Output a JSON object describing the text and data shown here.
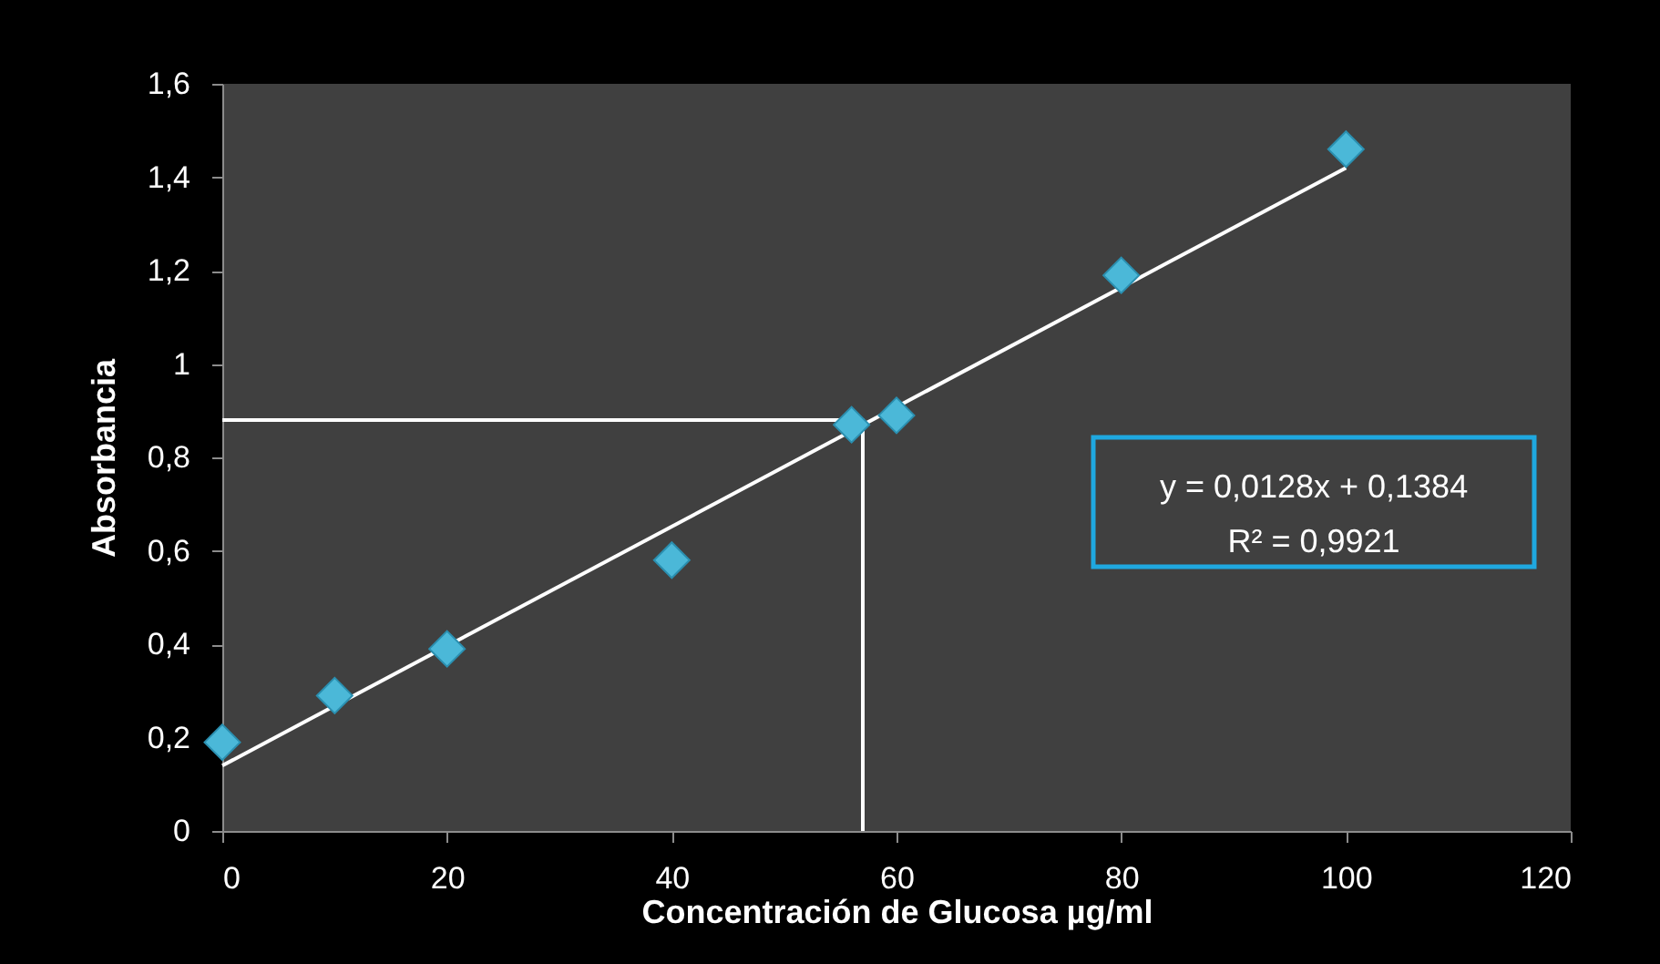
{
  "chart_data": {
    "type": "scatter",
    "xlabel": "Concentración de Glucosa µg/ml",
    "ylabel": "Absorbancia",
    "xlim": [
      0,
      120
    ],
    "xticks": [
      0,
      20,
      40,
      60,
      80,
      100,
      120
    ],
    "ylim": [
      0,
      1.6
    ],
    "yticks": [
      0,
      {
        "value": 0.2,
        "label": "0,2"
      },
      {
        "value": 0.4,
        "label": "0,4"
      },
      {
        "value": 0.6,
        "label": "0,6"
      },
      {
        "value": 0.8,
        "label": "0,8"
      },
      1,
      {
        "value": 1.2,
        "label": "1,2"
      },
      {
        "value": 1.4,
        "label": "1,4"
      },
      {
        "value": 1.6,
        "label": "1,6"
      }
    ],
    "grid": false,
    "annotations": [
      "y = 0,0128x + 0,1384",
      "R² = 0,9921"
    ],
    "series": [
      {
        "color": "#4bb8d8",
        "marker": "diamond",
        "x": [
          0,
          10,
          20,
          40,
          56,
          60,
          80,
          100
        ],
        "values": [
          0.19,
          0.29,
          0.39,
          0.58,
          0.87,
          0.89,
          1.19,
          1.46
        ]
      },
      {
        "type": "line",
        "color": "#ffffff",
        "marker": "none",
        "x": [
          0,
          100
        ],
        "values": [
          0.14,
          1.42
        ]
      },
      {
        "type": "line",
        "color": "#ffffff",
        "marker": "none",
        "x": [
          0,
          57,
          57
        ],
        "values": [
          0.88,
          0.88,
          0
        ]
      }
    ]
  }
}
